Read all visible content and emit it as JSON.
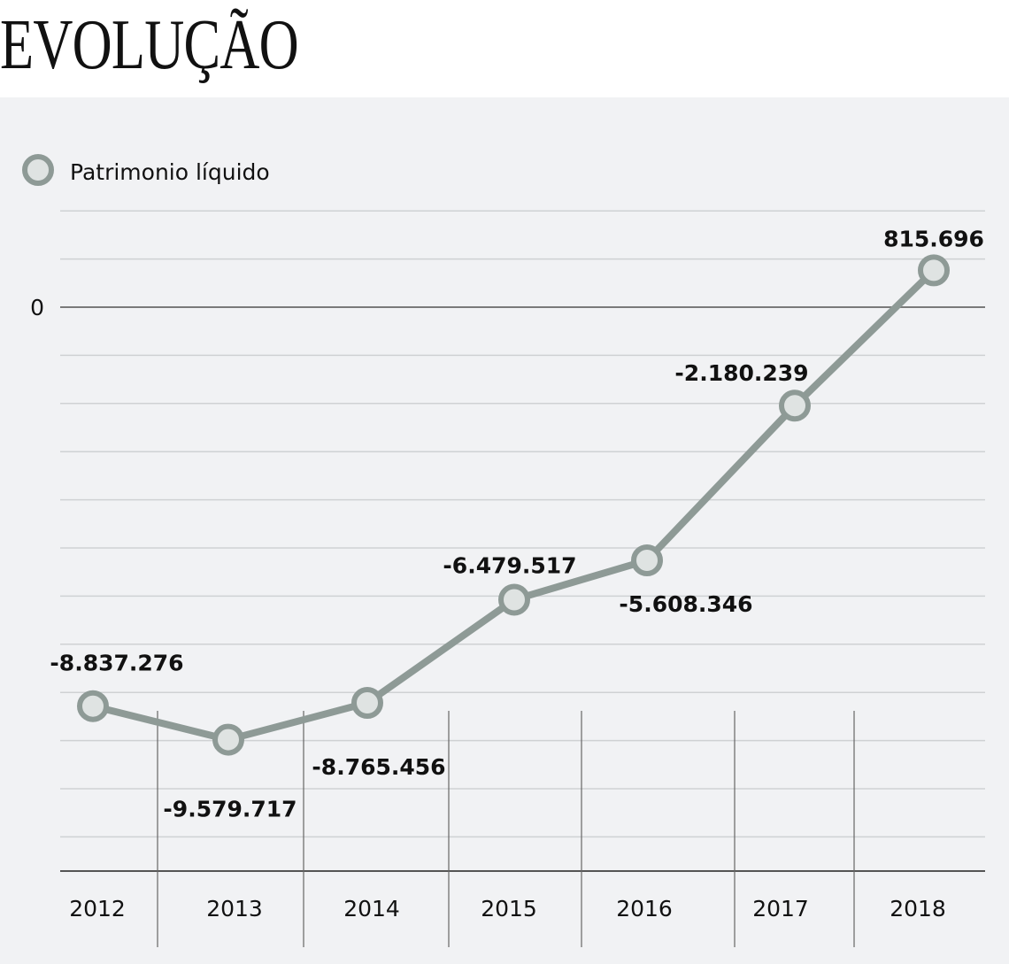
{
  "title": "EVOLUÇÃO",
  "chart_data": {
    "type": "line",
    "title": "EVOLUÇÃO",
    "legend": [
      {
        "label": "Patrimonio líquido",
        "placement": "top-left"
      }
    ],
    "categories": [
      "2012",
      "2013",
      "2014",
      "2015",
      "2016",
      "2017",
      "2018"
    ],
    "series": [
      {
        "name": "Patrimonio líquido",
        "values": [
          -8837276,
          -9579717,
          -8765456,
          -6479517,
          -5608346,
          -2180239,
          815696
        ]
      }
    ],
    "data_labels": [
      "-8.837.276",
      "-9.579.717",
      "-8.765.456",
      "-6.479.517",
      "-5.608.346",
      "-2.180.239",
      "815.696"
    ],
    "label_side": [
      "above",
      "below",
      "below",
      "above",
      "below",
      "above",
      "above"
    ],
    "ytick_labels": [
      {
        "value": 0,
        "label": "0"
      }
    ],
    "ylim": [
      -12500000,
      2100000
    ],
    "grid": true,
    "colors": {
      "line": "#8e9a96",
      "marker_fill": "#dfe3e2",
      "background": "#f1f2f4",
      "grid": "#cfd1d3",
      "zero_line": "#7a7a7a"
    }
  }
}
